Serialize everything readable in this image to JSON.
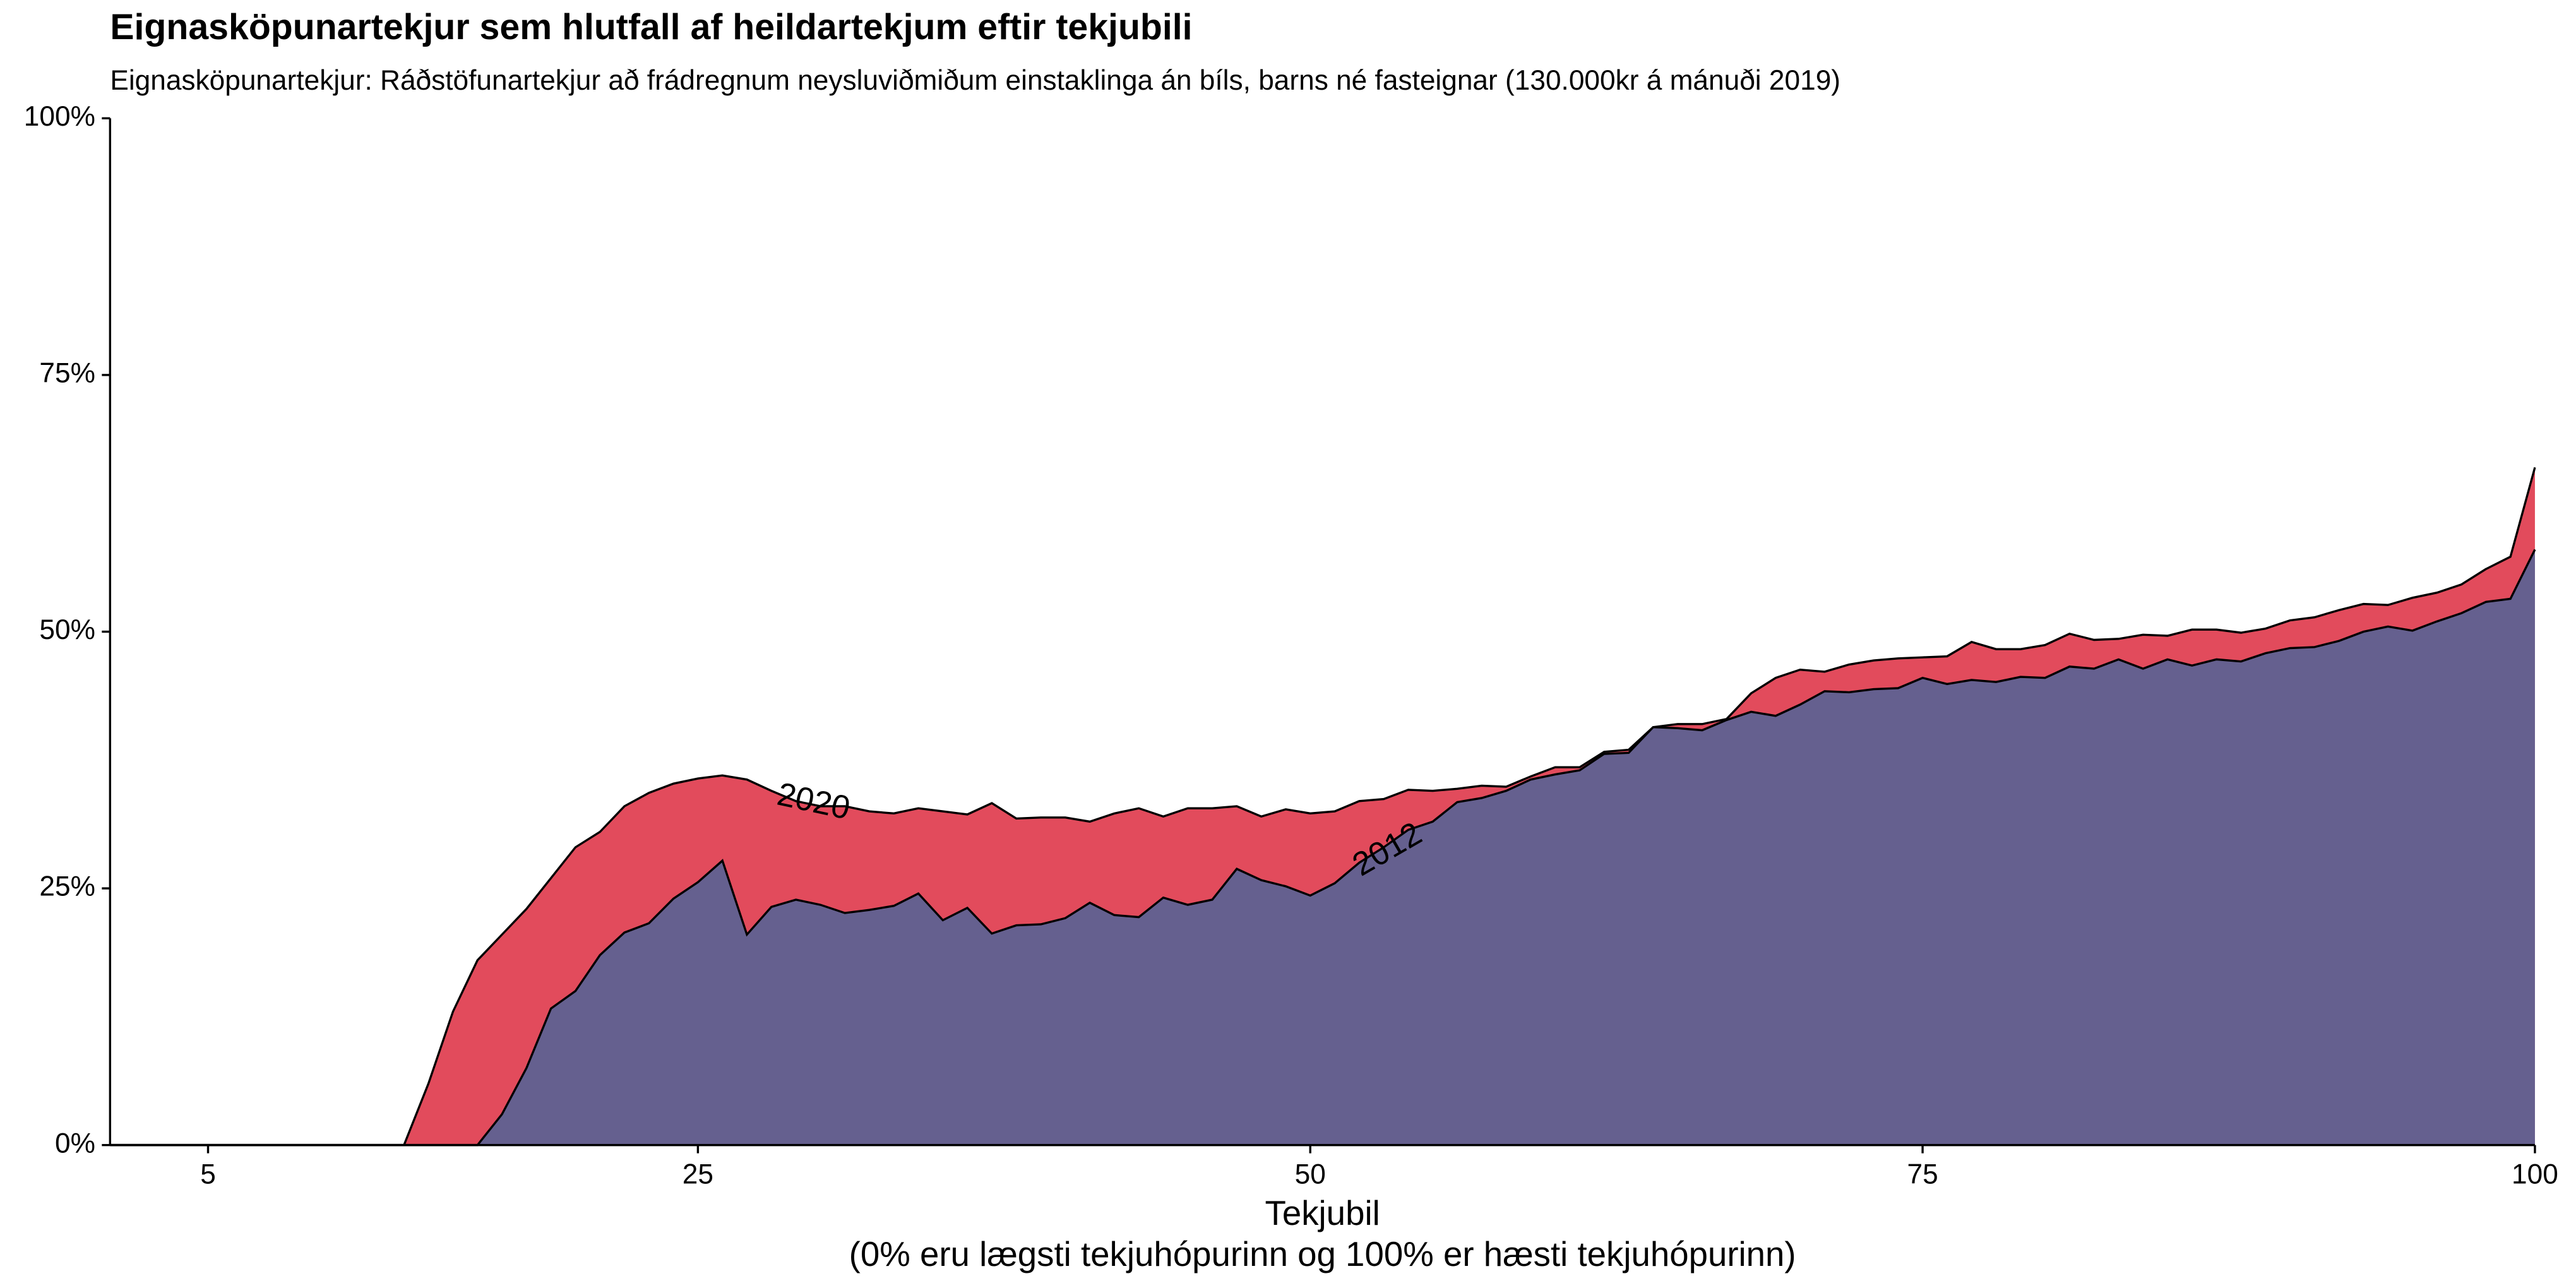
{
  "chart_data": {
    "type": "area",
    "title": "Eignasköpunartekjur sem hlutfall af heildartekjum eftir tekjubili",
    "subtitle": "Eignasköpunartekjur: Ráðstöfunartekjur að frádregnum neysluviðmiðum einstaklinga án bíls, barns né fasteignar (130.000kr á mánuði 2019)",
    "xlabel": "Tekjubil",
    "xlabel_sub": "(0% eru lægsti tekjuhópurinn og 100% er hæsti tekjuhópurinn)",
    "x": [
      1,
      2,
      3,
      4,
      5,
      6,
      7,
      8,
      9,
      10,
      11,
      12,
      13,
      14,
      15,
      16,
      17,
      18,
      19,
      20,
      21,
      22,
      23,
      24,
      25,
      26,
      27,
      28,
      29,
      30,
      31,
      32,
      33,
      34,
      35,
      36,
      37,
      38,
      39,
      40,
      41,
      42,
      43,
      44,
      45,
      46,
      47,
      48,
      49,
      50,
      51,
      52,
      53,
      54,
      55,
      56,
      57,
      58,
      59,
      60,
      61,
      62,
      63,
      64,
      65,
      66,
      67,
      68,
      69,
      70,
      71,
      72,
      73,
      74,
      75,
      76,
      77,
      78,
      79,
      80,
      81,
      82,
      83,
      84,
      85,
      86,
      87,
      88,
      89,
      90,
      91,
      92,
      93,
      94,
      95,
      96,
      97,
      98,
      99,
      100
    ],
    "series": [
      {
        "name": "2020",
        "color": "#e24b5c",
        "values": [
          0,
          0,
          0,
          0,
          0,
          0,
          0,
          0,
          0,
          0,
          0,
          0,
          0,
          6,
          13,
          18,
          20.5,
          23,
          26,
          29,
          30.5,
          33,
          34.3,
          35.2,
          35.7,
          36,
          35.6,
          34.5,
          33.5,
          33,
          33,
          32.5,
          32.3,
          32.8,
          32.5,
          32.2,
          33.3,
          31.8,
          31.9,
          31.9,
          31.5,
          32.3,
          32.8,
          32,
          32.8,
          32.8,
          33,
          32,
          32.7,
          32.3,
          32.5,
          33.5,
          33.7,
          34.6,
          34.5,
          34.7,
          35,
          34.9,
          35.9,
          36.8,
          36.8,
          38.3,
          38.5,
          40.7,
          41,
          41,
          41.5,
          44,
          45.5,
          46.3,
          46.1,
          46.8,
          47.2,
          47.4,
          47.5,
          47.6,
          49,
          48.3,
          48.3,
          48.7,
          49.8,
          49.2,
          49.3,
          49.7,
          49.6,
          50.2,
          50.2,
          49.9,
          50.3,
          51.1,
          51.4,
          52.1,
          52.7,
          52.6,
          53.3,
          53.8,
          54.6,
          56.1,
          57.3,
          66
        ]
      },
      {
        "name": "2012",
        "color": "#65608f",
        "values": [
          0,
          0,
          0,
          0,
          0,
          0,
          0,
          0,
          0,
          0,
          0,
          0,
          0,
          0,
          0,
          0,
          3,
          7.5,
          13.3,
          15,
          18.5,
          20.7,
          21.6,
          24,
          25.6,
          27.7,
          20.5,
          23.2,
          23.9,
          23.4,
          22.6,
          22.9,
          23.3,
          24.5,
          21.9,
          23.1,
          20.6,
          21.4,
          21.5,
          22.1,
          23.6,
          22.4,
          22.2,
          24.1,
          23.4,
          23.9,
          26.9,
          25.8,
          25.2,
          24.3,
          25.5,
          27.5,
          29,
          30.7,
          31.5,
          33.4,
          33.8,
          34.5,
          35.6,
          36.1,
          36.5,
          38.1,
          38.2,
          40.7,
          40.6,
          40.4,
          41.4,
          42.2,
          41.8,
          42.9,
          44.2,
          44.1,
          44.4,
          44.5,
          45.5,
          44.9,
          45.3,
          45.1,
          45.6,
          45.5,
          46.6,
          46.4,
          47.3,
          46.4,
          47.3,
          46.7,
          47.3,
          47.1,
          47.9,
          48.4,
          48.5,
          49.1,
          50,
          50.5,
          50.1,
          51,
          51.8,
          52.9,
          53.2,
          58
        ]
      }
    ],
    "xlim": [
      1,
      100
    ],
    "xticks": [
      5,
      25,
      50,
      75,
      100
    ],
    "ylim": [
      0,
      100
    ],
    "yticks": [
      {
        "value": 0,
        "label": "0%"
      },
      {
        "value": 25,
        "label": "25%"
      },
      {
        "value": 50,
        "label": "50%"
      },
      {
        "value": 75,
        "label": "75%"
      },
      {
        "value": 100,
        "label": "100%"
      }
    ],
    "grid": false
  }
}
